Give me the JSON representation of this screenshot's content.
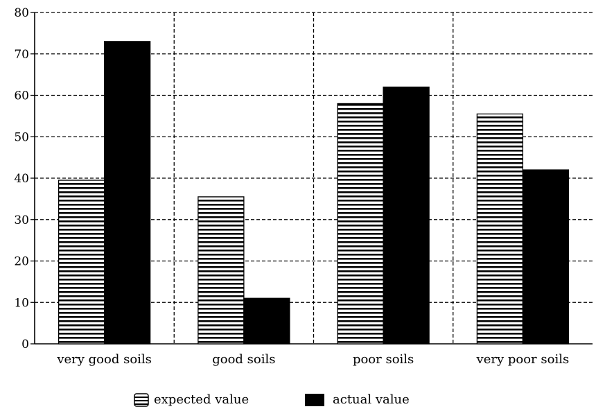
{
  "chart_data": {
    "type": "bar",
    "categories": [
      "very good soils",
      "good soils",
      "poor soils",
      "very poor soils"
    ],
    "series": [
      {
        "name": "expected value",
        "values": [
          39.5,
          35.5,
          58,
          55.5
        ],
        "pattern": "horizontal-stripes",
        "color": "#000000"
      },
      {
        "name": "actual value",
        "values": [
          73,
          11,
          62,
          42
        ],
        "pattern": "solid",
        "color": "#000000"
      }
    ],
    "ylim": [
      0,
      80
    ],
    "yticks": [
      "0",
      "10",
      "20",
      "30",
      "40",
      "50",
      "60",
      "70",
      "80"
    ],
    "grid": true,
    "legend_position": "bottom"
  }
}
